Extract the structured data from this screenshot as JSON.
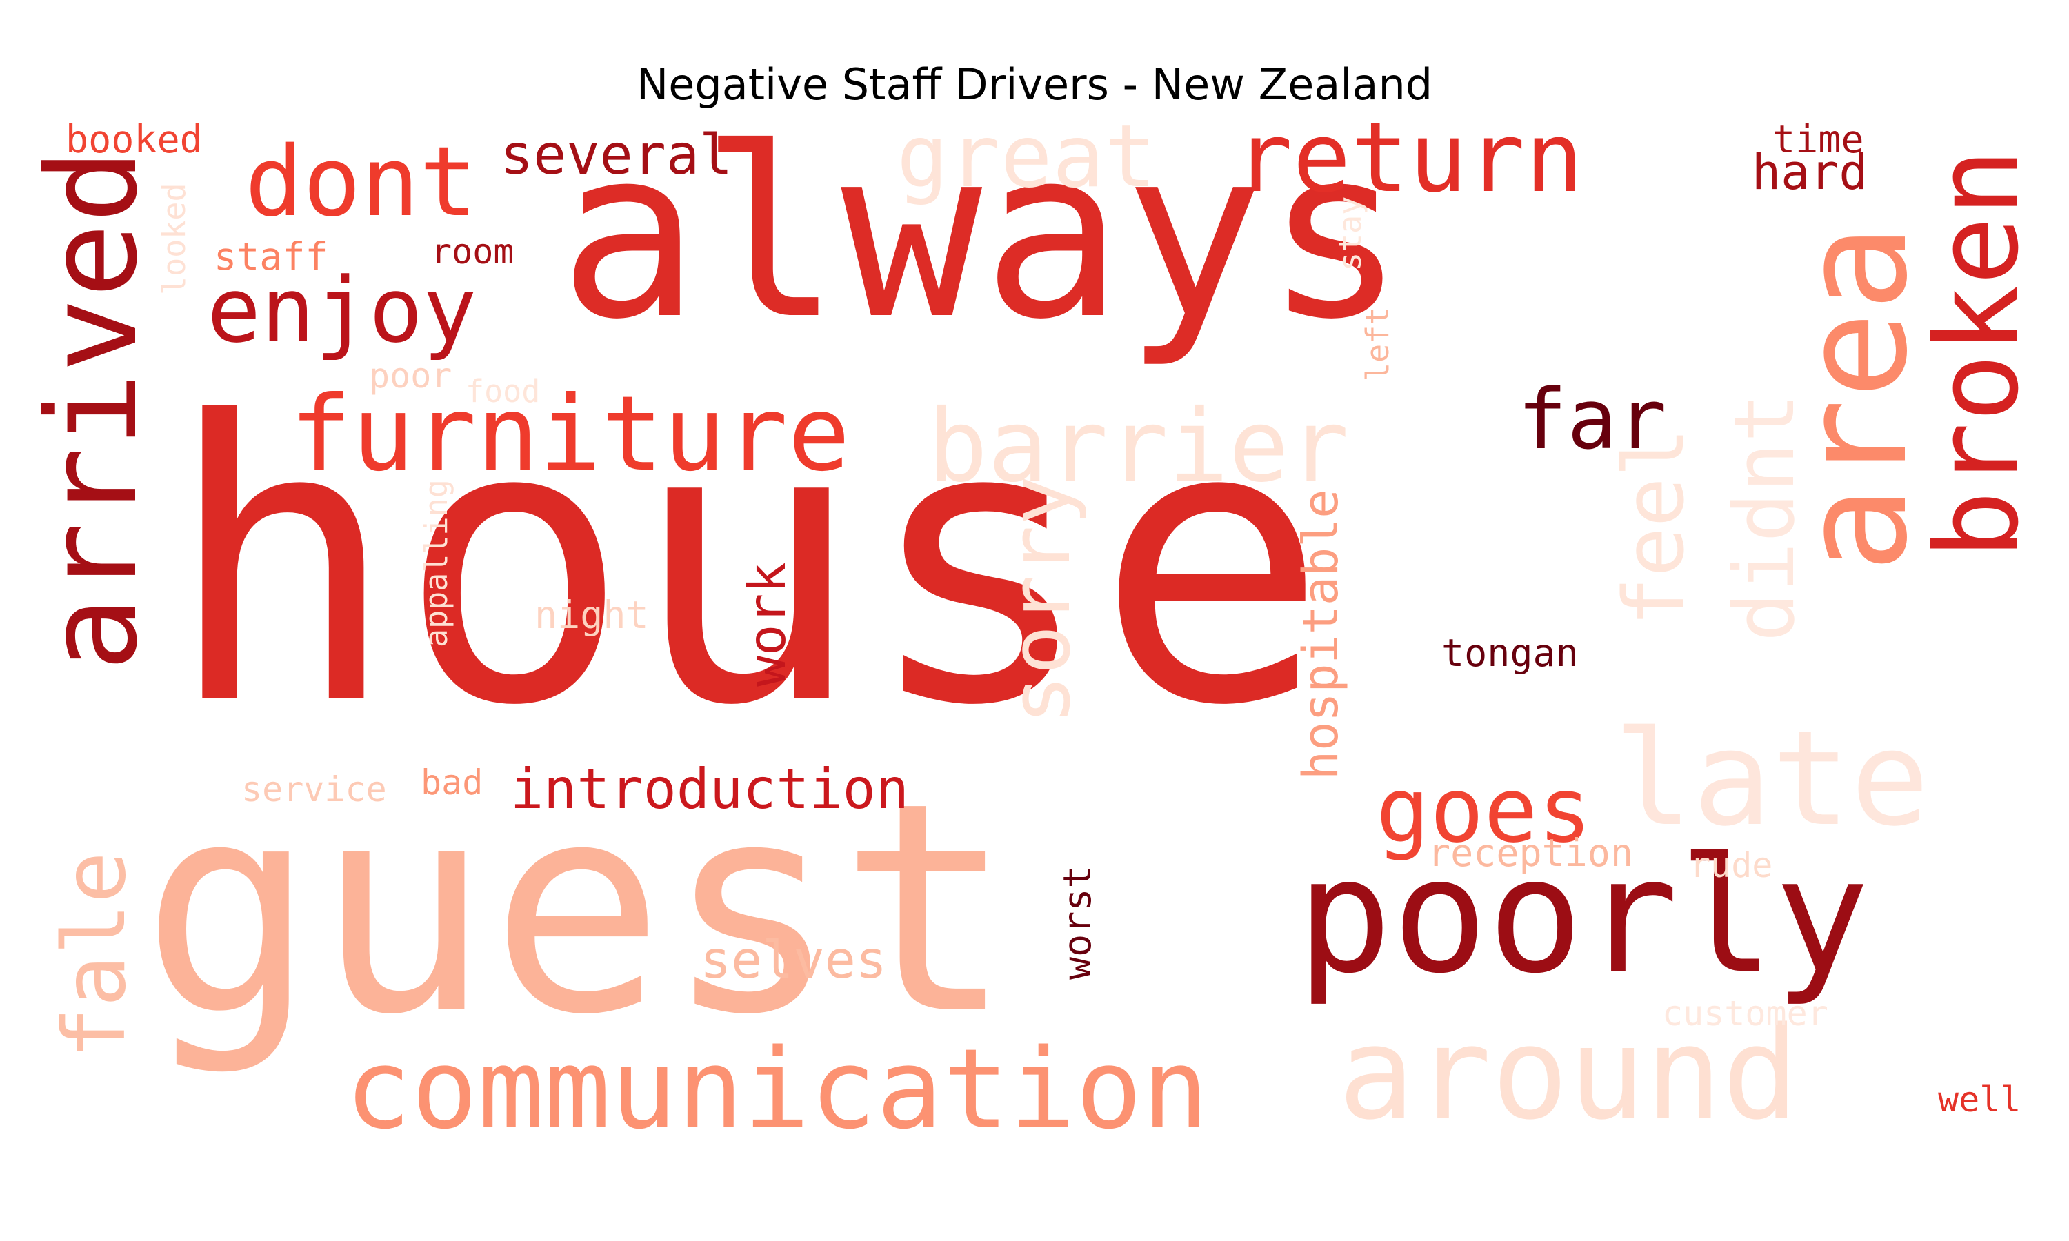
{
  "title": "Negative Staff Drivers - New Zealand",
  "palette": "Reds",
  "words": [
    {
      "text": "house",
      "color": "#dc2a25",
      "vertical": false
    },
    {
      "text": "guest",
      "color": "#fcb398",
      "vertical": false
    },
    {
      "text": "always",
      "color": "#dd2c26",
      "vertical": false
    },
    {
      "text": "poorly",
      "color": "#9c0d14",
      "vertical": false
    },
    {
      "text": "arrived",
      "color": "#a50f15",
      "vertical": true
    },
    {
      "text": "area",
      "color": "#fc8a6a",
      "vertical": true
    },
    {
      "text": "broken",
      "color": "#d52221",
      "vertical": true
    },
    {
      "text": "communication",
      "color": "#fc9272",
      "vertical": false
    },
    {
      "text": "around",
      "color": "#fee0d2",
      "vertical": false
    },
    {
      "text": "late",
      "color": "#fee6dc",
      "vertical": false
    },
    {
      "text": "furniture",
      "color": "#ef3b2c",
      "vertical": false
    },
    {
      "text": "barrier",
      "color": "#fee3d6",
      "vertical": false
    },
    {
      "text": "return",
      "color": "#e32f27",
      "vertical": false
    },
    {
      "text": "dont",
      "color": "#ef3b2c",
      "vertical": false
    },
    {
      "text": "great",
      "color": "#fee4d8",
      "vertical": false
    },
    {
      "text": "enjoy",
      "color": "#bb141a",
      "vertical": false
    },
    {
      "text": "far",
      "color": "#67000d",
      "vertical": false
    },
    {
      "text": "goes",
      "color": "#f14432",
      "vertical": false
    },
    {
      "text": "fale",
      "color": "#fcbea5",
      "vertical": true
    },
    {
      "text": "feel",
      "color": "#fee5d9",
      "vertical": true
    },
    {
      "text": "didnt",
      "color": "#fee8de",
      "vertical": true
    },
    {
      "text": "sorry",
      "color": "#fee2d5",
      "vertical": true
    },
    {
      "text": "introduction",
      "color": "#cb181d",
      "vertical": false
    },
    {
      "text": "several",
      "color": "#a50f15",
      "vertical": false
    },
    {
      "text": "selves",
      "color": "#fcbba1",
      "vertical": false
    },
    {
      "text": "hospitable",
      "color": "#fc9e80",
      "vertical": true
    },
    {
      "text": "work",
      "color": "#c4161c",
      "vertical": true
    },
    {
      "text": "hard",
      "color": "#a50f15",
      "vertical": false
    },
    {
      "text": "time",
      "color": "#a50f15",
      "vertical": false
    },
    {
      "text": "tongan",
      "color": "#67000d",
      "vertical": false
    },
    {
      "text": "reception",
      "color": "#fcb89e",
      "vertical": false
    },
    {
      "text": "worst",
      "color": "#67000d",
      "vertical": true
    },
    {
      "text": "booked",
      "color": "#f14432",
      "vertical": false
    },
    {
      "text": "room",
      "color": "#a50f15",
      "vertical": false
    },
    {
      "text": "staff",
      "color": "#fc8262",
      "vertical": false
    },
    {
      "text": "looked",
      "color": "#fee1d4",
      "vertical": true
    },
    {
      "text": "stay",
      "color": "#fee7db",
      "vertical": true
    },
    {
      "text": "left",
      "color": "#fcb69b",
      "vertical": true
    },
    {
      "text": "poor",
      "color": "#fdd1bf",
      "vertical": false
    },
    {
      "text": "food",
      "color": "#fee5d9",
      "vertical": false
    },
    {
      "text": "night",
      "color": "#fdd3c1",
      "vertical": false
    },
    {
      "text": "appalling",
      "color": "#fee1d4",
      "vertical": true
    },
    {
      "text": "service",
      "color": "#fdcab5",
      "vertical": false
    },
    {
      "text": "bad",
      "color": "#fc9777",
      "vertical": false
    },
    {
      "text": "rude",
      "color": "#fddbcb",
      "vertical": false
    },
    {
      "text": "customer",
      "color": "#fee8de",
      "vertical": false
    },
    {
      "text": "well",
      "color": "#e53228",
      "vertical": false
    }
  ]
}
